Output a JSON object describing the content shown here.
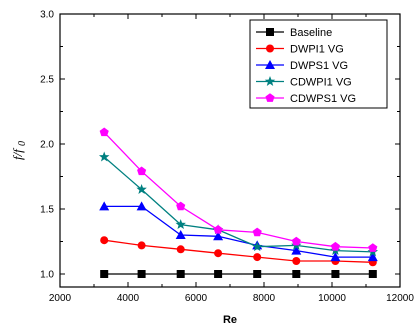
{
  "chart_data": {
    "type": "line",
    "xlabel": "Re",
    "ylabel_main": "f/f",
    "ylabel_sub": "0",
    "xlim": [
      2000,
      12000
    ],
    "ylim": [
      0.9,
      3.0
    ],
    "xticks": [
      2000,
      4000,
      6000,
      8000,
      10000,
      12000
    ],
    "yticks": [
      1.0,
      1.5,
      2.0,
      2.5,
      3.0
    ],
    "xtick_labels": [
      "2000",
      "4000",
      "6000",
      "8000",
      "10000",
      "12000"
    ],
    "ytick_labels": [
      "1.0",
      "1.5",
      "2.0",
      "2.5",
      "3.0"
    ],
    "grid": false,
    "legend_position": "top-right",
    "x": [
      3300,
      4400,
      5550,
      6650,
      7800,
      8950,
      10100,
      11200
    ],
    "series": [
      {
        "name": "Baseline",
        "color": "#000000",
        "marker": "square",
        "values": [
          1.0,
          1.0,
          1.0,
          1.0,
          1.0,
          1.0,
          1.0,
          1.0
        ]
      },
      {
        "name": "DWPI1 VG",
        "color": "#ff0000",
        "marker": "circle",
        "values": [
          1.26,
          1.22,
          1.19,
          1.16,
          1.13,
          1.1,
          1.1,
          1.09
        ]
      },
      {
        "name": "DWPS1 VG",
        "color": "#0000ff",
        "marker": "triangle",
        "values": [
          1.52,
          1.52,
          1.3,
          1.29,
          1.22,
          1.18,
          1.13,
          1.13
        ]
      },
      {
        "name": "CDWPI1 VG",
        "color": "#008080",
        "marker": "star",
        "values": [
          1.9,
          1.65,
          1.38,
          1.34,
          1.21,
          1.22,
          1.18,
          1.17
        ]
      },
      {
        "name": "CDWPS1 VG",
        "color": "#ff00ff",
        "marker": "pentagon",
        "values": [
          2.09,
          1.79,
          1.52,
          1.34,
          1.32,
          1.25,
          1.21,
          1.2
        ]
      }
    ]
  }
}
